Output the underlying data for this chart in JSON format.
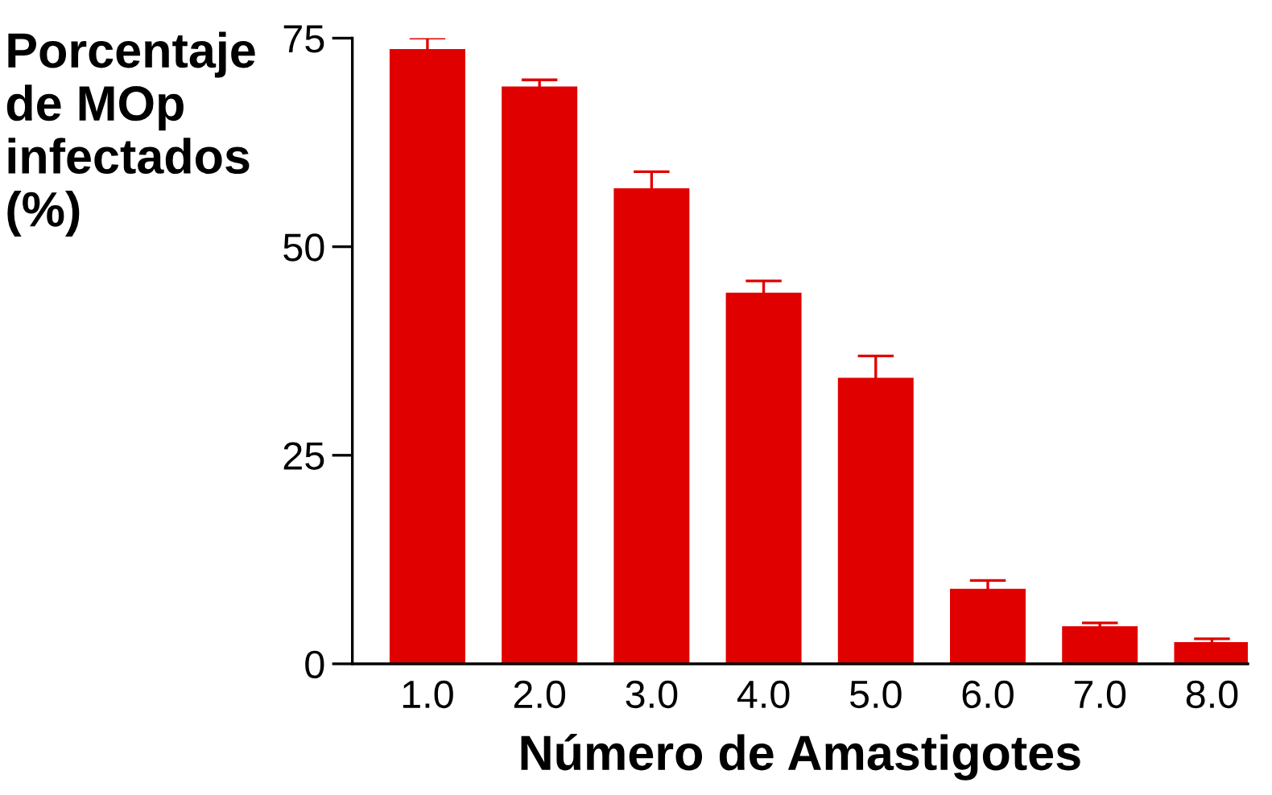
{
  "chart_data": {
    "type": "bar",
    "xlabel": "Número de Amastigotes",
    "ylabel": "Porcentaje\nde MOp\ninfectados\n(%)",
    "categories": [
      "1.0",
      "2.0",
      "3.0",
      "4.0",
      "5.0",
      "6.0",
      "7.0",
      "8.0"
    ],
    "values": [
      73.7,
      69.2,
      57.0,
      44.5,
      34.3,
      9.0,
      4.5,
      2.6
    ],
    "errors": [
      1.3,
      0.8,
      2.0,
      1.4,
      2.6,
      1.0,
      0.4,
      0.4
    ],
    "color": "#e00000",
    "ylim": [
      0,
      75
    ],
    "yticks": [
      0,
      25,
      50,
      75
    ],
    "grid": false,
    "legend": false
  }
}
